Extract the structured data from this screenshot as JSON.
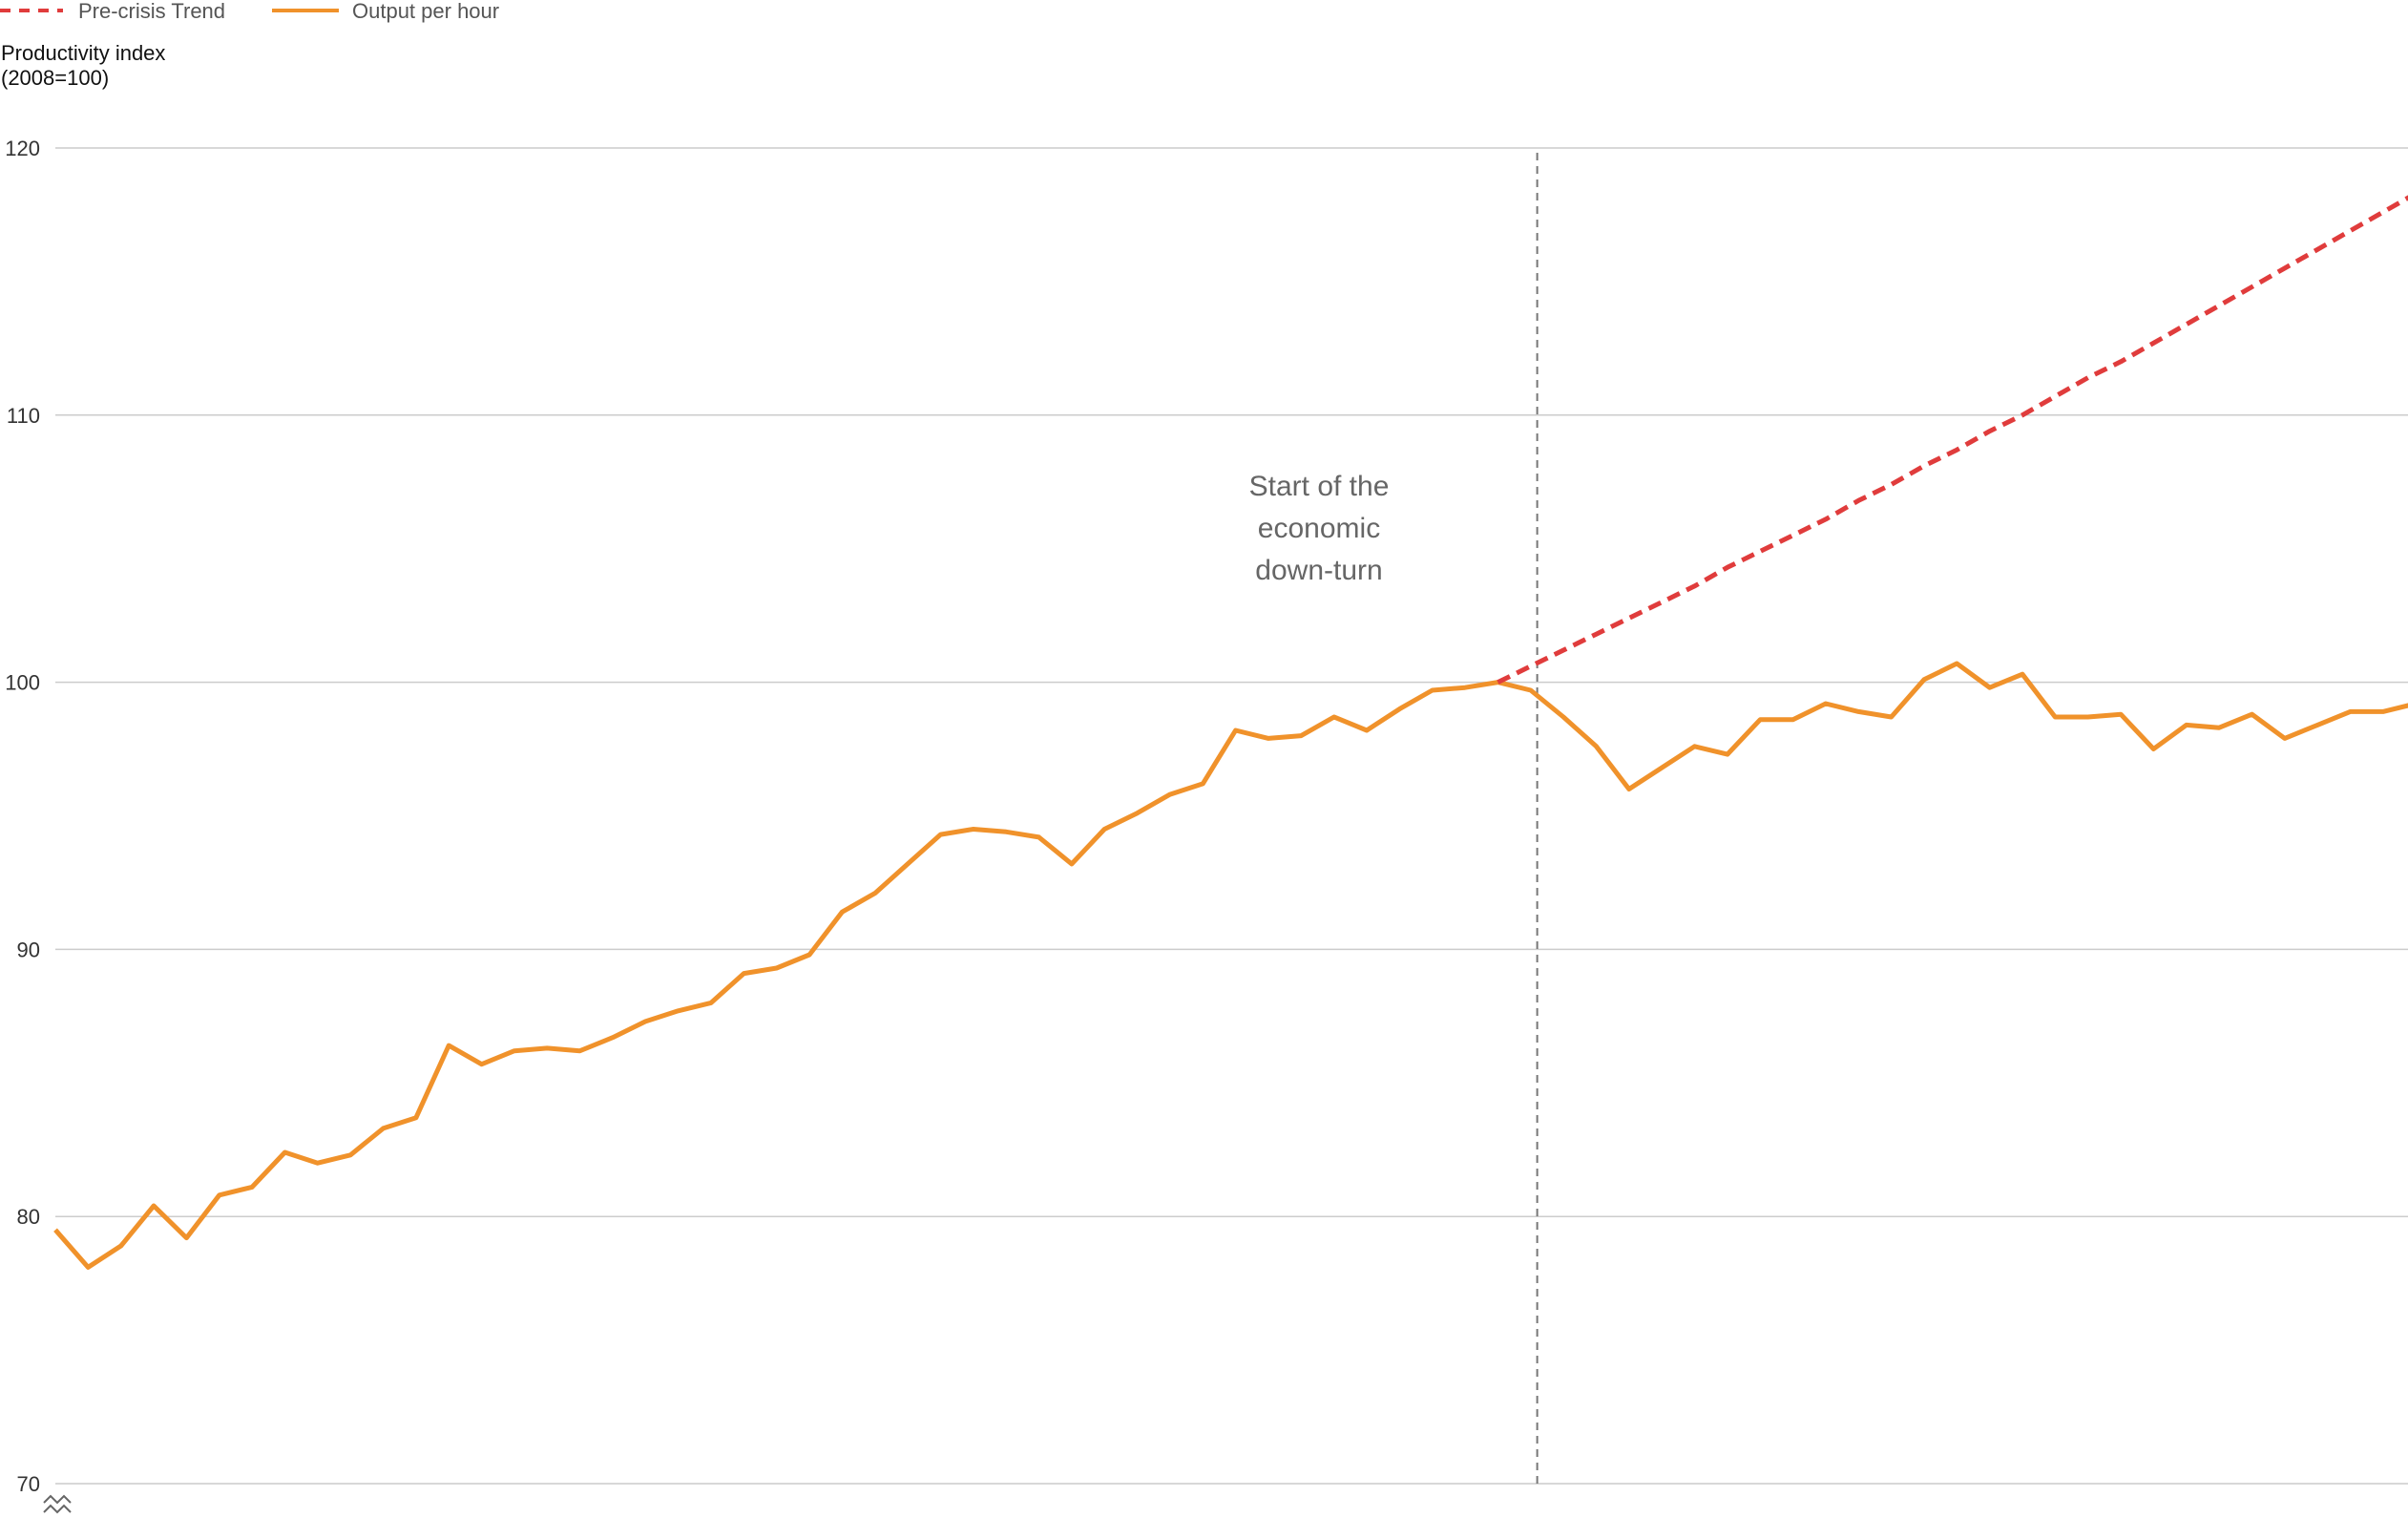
{
  "colors": {
    "trend": "#e03c3c",
    "output": "#f0922b",
    "grid": "#cccccc",
    "marker": "#777777"
  },
  "chart_data": {
    "type": "line",
    "ylabel": [
      "Productivity index",
      "(2008=100)"
    ],
    "ylim": [
      70,
      120
    ],
    "yticks": [
      70,
      80,
      90,
      100,
      110,
      120
    ],
    "grid": "horizontal",
    "legend_placement": "top-left",
    "x_period_count": 76,
    "series": [
      {
        "name": "Pre-crisis Trend",
        "style": "dashed",
        "start_index": 44,
        "values": [
          100.0,
          100.6,
          101.2,
          101.8,
          102.4,
          103.0,
          103.6,
          104.3,
          104.9,
          105.5,
          106.1,
          106.8,
          107.4,
          108.1,
          108.7,
          109.4,
          110.0,
          110.7,
          111.4,
          112.0,
          112.7,
          113.4,
          114.1,
          114.8,
          115.5,
          116.2,
          116.9,
          117.6,
          118.3,
          119.0,
          119.7,
          120.4
        ]
      },
      {
        "name": "Output per hour",
        "style": "solid",
        "start_index": 0,
        "values": [
          79.5,
          78.1,
          78.9,
          80.4,
          79.2,
          80.8,
          81.1,
          82.4,
          82.0,
          82.3,
          83.3,
          83.7,
          86.4,
          85.7,
          86.2,
          86.3,
          86.2,
          86.7,
          87.3,
          87.7,
          88.0,
          89.1,
          89.3,
          89.8,
          91.4,
          92.1,
          93.2,
          94.3,
          94.5,
          94.4,
          94.2,
          93.2,
          94.5,
          95.1,
          95.8,
          96.2,
          98.2,
          97.9,
          98.0,
          98.7,
          98.2,
          99.0,
          99.7,
          99.8,
          100.0,
          99.7,
          98.7,
          97.6,
          96.0,
          96.8,
          97.6,
          97.3,
          98.6,
          98.6,
          99.2,
          98.9,
          98.7,
          100.1,
          100.7,
          99.8,
          100.3,
          98.7,
          98.7,
          98.8,
          97.5,
          98.4,
          98.3,
          98.8,
          97.9,
          98.4,
          98.9,
          98.9,
          99.2,
          99.2,
          99.4,
          99.5
        ]
      }
    ],
    "annotations": [
      {
        "text": [
          "Start of the",
          "economic",
          "down-turn"
        ],
        "at_index": 45.2,
        "line_style": "dashed"
      }
    ]
  }
}
